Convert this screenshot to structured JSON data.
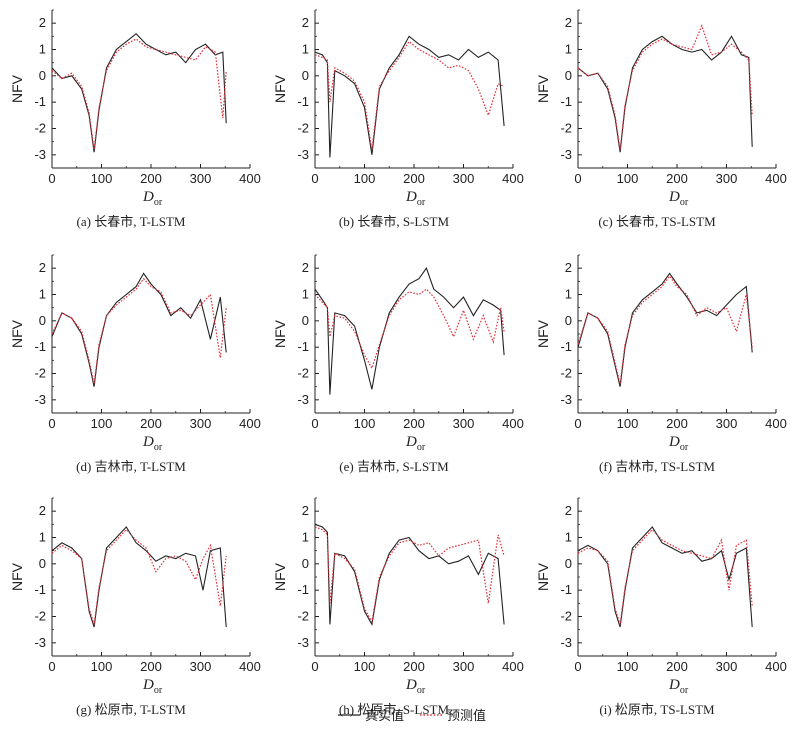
{
  "chart_data": {
    "type": "line",
    "legend": [
      {
        "name": "真实值",
        "color": "#222222",
        "style": "solid"
      },
      {
        "name": "预测值",
        "color": "#e0303a",
        "style": "dotted"
      }
    ],
    "legend_placement": "bottom-center",
    "ylabel": "NFV",
    "xlabel_main": "D",
    "xlabel_sub": "or",
    "ylim": [
      -3.5,
      2.5
    ],
    "yticks": [
      -3,
      -2,
      -1,
      0,
      1,
      2
    ],
    "xlim": [
      0,
      400
    ],
    "xticks": [
      0,
      100,
      200,
      300,
      400
    ],
    "panels": [
      {
        "id": "a",
        "caption": "(a) 长春市, T-LSTM",
        "city": "长春市",
        "model": "T-LSTM",
        "series": [
          {
            "name": "真实值",
            "x": [
              0,
              20,
              40,
              60,
              75,
              85,
              95,
              110,
              130,
              150,
              170,
              190,
              210,
              230,
              250,
              270,
              290,
              310,
              330,
              345,
              352
            ],
            "values": [
              0.3,
              -0.1,
              0.0,
              -0.5,
              -1.5,
              -2.9,
              -1.3,
              0.3,
              1.0,
              1.3,
              1.6,
              1.2,
              1.0,
              0.8,
              0.9,
              0.5,
              1.0,
              1.2,
              0.8,
              0.9,
              -1.8
            ]
          },
          {
            "name": "预测值",
            "x": [
              0,
              20,
              40,
              60,
              75,
              85,
              95,
              110,
              130,
              150,
              170,
              190,
              210,
              230,
              250,
              270,
              290,
              310,
              330,
              345,
              352
            ],
            "values": [
              0.2,
              -0.1,
              0.1,
              -0.4,
              -1.4,
              -2.8,
              -1.2,
              0.2,
              0.9,
              1.2,
              1.4,
              1.1,
              1.0,
              0.9,
              0.8,
              0.7,
              0.6,
              1.1,
              0.9,
              -1.6,
              0.2
            ]
          }
        ]
      },
      {
        "id": "b",
        "caption": "(b) 长春市, S-LSTM",
        "city": "长春市",
        "model": "S-LSTM",
        "series": [
          {
            "name": "真实值",
            "x": [
              0,
              15,
              25,
              30,
              40,
              60,
              80,
              100,
              115,
              130,
              150,
              170,
              190,
              210,
              230,
              250,
              270,
              290,
              310,
              330,
              350,
              370,
              382
            ],
            "values": [
              0.9,
              0.8,
              0.5,
              -3.1,
              0.2,
              0.0,
              -0.3,
              -1.2,
              -3.0,
              -0.5,
              0.3,
              0.8,
              1.5,
              1.2,
              1.0,
              0.7,
              0.8,
              0.6,
              1.0,
              0.7,
              0.9,
              0.6,
              -1.9
            ]
          },
          {
            "name": "预测值",
            "x": [
              0,
              15,
              25,
              30,
              40,
              60,
              80,
              100,
              115,
              130,
              150,
              170,
              190,
              210,
              230,
              250,
              270,
              290,
              310,
              330,
              350,
              370,
              382
            ],
            "values": [
              0.8,
              0.7,
              0.6,
              -1.0,
              0.3,
              0.1,
              -0.2,
              -1.0,
              -2.8,
              -0.4,
              0.2,
              0.7,
              1.3,
              1.0,
              0.8,
              0.6,
              0.3,
              0.4,
              0.2,
              -0.5,
              -1.5,
              -0.3,
              -0.4
            ]
          }
        ]
      },
      {
        "id": "c",
        "caption": "(c) 长春市, TS-LSTM",
        "city": "长春市",
        "model": "TS-LSTM",
        "series": [
          {
            "name": "真实值",
            "x": [
              0,
              20,
              40,
              60,
              75,
              85,
              95,
              110,
              130,
              150,
              170,
              190,
              210,
              230,
              250,
              270,
              290,
              310,
              330,
              345,
              352
            ],
            "values": [
              0.3,
              0.0,
              0.1,
              -0.5,
              -1.6,
              -2.9,
              -1.2,
              0.3,
              1.0,
              1.3,
              1.5,
              1.2,
              1.0,
              0.9,
              1.0,
              0.6,
              0.9,
              1.5,
              0.8,
              0.7,
              -2.7
            ]
          },
          {
            "name": "预测值",
            "x": [
              0,
              20,
              40,
              60,
              75,
              85,
              95,
              110,
              130,
              150,
              170,
              190,
              210,
              230,
              250,
              270,
              290,
              310,
              330,
              345,
              352
            ],
            "values": [
              0.3,
              0.0,
              0.1,
              -0.4,
              -1.5,
              -2.8,
              -1.1,
              0.2,
              0.9,
              1.2,
              1.4,
              1.2,
              1.1,
              1.0,
              1.9,
              0.8,
              0.9,
              1.2,
              0.9,
              0.6,
              -1.5
            ]
          }
        ]
      },
      {
        "id": "d",
        "caption": "(d) 吉林市, T-LSTM",
        "city": "吉林市",
        "model": "T-LSTM",
        "series": [
          {
            "name": "真实值",
            "x": [
              0,
              20,
              40,
              60,
              75,
              85,
              95,
              110,
              130,
              150,
              170,
              185,
              200,
              220,
              240,
              260,
              280,
              300,
              320,
              340,
              352
            ],
            "values": [
              -0.6,
              0.3,
              0.1,
              -0.5,
              -1.6,
              -2.5,
              -1.0,
              0.2,
              0.7,
              1.0,
              1.3,
              1.8,
              1.4,
              1.0,
              0.2,
              0.5,
              0.1,
              0.8,
              -0.7,
              0.9,
              -1.2
            ]
          },
          {
            "name": "预测值",
            "x": [
              0,
              20,
              40,
              60,
              75,
              85,
              95,
              110,
              130,
              150,
              170,
              185,
              200,
              220,
              240,
              260,
              280,
              300,
              320,
              340,
              352
            ],
            "values": [
              -0.5,
              0.3,
              0.1,
              -0.4,
              -1.5,
              -2.4,
              -0.9,
              0.2,
              0.6,
              0.9,
              1.2,
              1.6,
              1.3,
              1.1,
              0.3,
              0.4,
              0.2,
              0.6,
              1.0,
              -1.4,
              0.5
            ]
          }
        ]
      },
      {
        "id": "e",
        "caption": "(e) 吉林市, S-LSTM",
        "city": "吉林市",
        "model": "S-LSTM",
        "series": [
          {
            "name": "真实值",
            "x": [
              0,
              15,
              25,
              30,
              40,
              60,
              80,
              100,
              115,
              130,
              150,
              170,
              190,
              210,
              225,
              240,
              260,
              280,
              300,
              320,
              340,
              360,
              375,
              382
            ],
            "values": [
              1.2,
              0.8,
              0.5,
              -2.8,
              0.3,
              0.2,
              -0.2,
              -1.5,
              -2.6,
              -1.0,
              0.3,
              0.9,
              1.4,
              1.6,
              2.0,
              1.2,
              0.9,
              0.5,
              0.9,
              0.2,
              0.8,
              0.6,
              0.4,
              -1.3
            ]
          },
          {
            "name": "预测值",
            "x": [
              0,
              15,
              25,
              30,
              40,
              60,
              80,
              100,
              115,
              130,
              150,
              170,
              190,
              210,
              225,
              240,
              260,
              280,
              300,
              320,
              340,
              360,
              375,
              382
            ],
            "values": [
              1.0,
              0.7,
              0.5,
              -0.6,
              0.2,
              0.1,
              -0.4,
              -1.3,
              -1.8,
              -0.9,
              0.2,
              0.8,
              1.1,
              1.0,
              1.2,
              0.9,
              0.2,
              -0.6,
              0.4,
              -0.7,
              0.2,
              -0.8,
              0.5,
              -0.4
            ]
          }
        ]
      },
      {
        "id": "f",
        "caption": "(f) 吉林市, TS-LSTM",
        "city": "吉林市",
        "model": "TS-LSTM",
        "series": [
          {
            "name": "真实值",
            "x": [
              0,
              20,
              40,
              60,
              75,
              85,
              95,
              110,
              130,
              150,
              170,
              185,
              200,
              220,
              240,
              260,
              280,
              300,
              320,
              340,
              352
            ],
            "values": [
              -1.0,
              0.3,
              0.1,
              -0.5,
              -1.7,
              -2.5,
              -1.0,
              0.3,
              0.8,
              1.1,
              1.4,
              1.8,
              1.4,
              0.9,
              0.3,
              0.4,
              0.2,
              0.6,
              1.0,
              1.3,
              -1.2
            ]
          },
          {
            "name": "预测值",
            "x": [
              0,
              20,
              40,
              60,
              75,
              85,
              95,
              110,
              130,
              150,
              170,
              185,
              200,
              220,
              240,
              260,
              280,
              300,
              320,
              340,
              352
            ],
            "values": [
              -0.9,
              0.3,
              0.1,
              -0.4,
              -1.6,
              -2.4,
              -0.9,
              0.2,
              0.7,
              1.0,
              1.3,
              1.7,
              1.3,
              1.0,
              0.2,
              0.5,
              0.3,
              0.5,
              -0.4,
              1.0,
              -1.0
            ]
          }
        ]
      },
      {
        "id": "g",
        "caption": "(g) 松原市, T-LSTM",
        "city": "松原市",
        "model": "T-LSTM",
        "series": [
          {
            "name": "真实值",
            "x": [
              0,
              20,
              40,
              60,
              75,
              85,
              95,
              110,
              130,
              150,
              170,
              190,
              210,
              230,
              250,
              270,
              290,
              305,
              320,
              340,
              352
            ],
            "values": [
              0.5,
              0.8,
              0.6,
              0.2,
              -1.8,
              -2.4,
              -1.0,
              0.6,
              1.0,
              1.4,
              0.8,
              0.5,
              0.1,
              0.3,
              0.2,
              0.4,
              0.3,
              -1.0,
              0.5,
              0.6,
              -2.4
            ]
          },
          {
            "name": "预测值",
            "x": [
              0,
              20,
              40,
              60,
              75,
              85,
              95,
              110,
              130,
              150,
              170,
              190,
              210,
              230,
              250,
              270,
              290,
              305,
              320,
              340,
              352
            ],
            "values": [
              0.4,
              0.7,
              0.5,
              0.2,
              -1.7,
              -2.3,
              -0.9,
              0.5,
              0.9,
              1.3,
              0.9,
              0.6,
              -0.3,
              0.2,
              0.3,
              0.1,
              -0.6,
              0.2,
              0.7,
              -1.6,
              0.3
            ]
          }
        ]
      },
      {
        "id": "h",
        "caption": "(h) 松原市, S-LSTM",
        "city": "松原市",
        "model": "S-LSTM",
        "series": [
          {
            "name": "真实值",
            "x": [
              0,
              15,
              25,
              30,
              40,
              60,
              80,
              100,
              115,
              130,
              150,
              170,
              190,
              210,
              230,
              250,
              270,
              290,
              310,
              330,
              350,
              370,
              382
            ],
            "values": [
              1.5,
              1.4,
              1.2,
              -2.3,
              0.4,
              0.3,
              -0.3,
              -1.8,
              -2.3,
              -0.6,
              0.4,
              0.9,
              1.0,
              0.5,
              0.2,
              0.3,
              0.0,
              0.1,
              0.3,
              -0.4,
              0.4,
              0.2,
              -2.3
            ]
          },
          {
            "name": "预测值",
            "x": [
              0,
              15,
              25,
              30,
              40,
              60,
              80,
              100,
              115,
              130,
              150,
              170,
              190,
              210,
              230,
              250,
              270,
              290,
              310,
              330,
              350,
              370,
              382
            ],
            "values": [
              1.4,
              1.3,
              1.1,
              -1.5,
              0.4,
              0.2,
              -0.2,
              -1.7,
              -2.2,
              -0.5,
              0.3,
              0.8,
              0.9,
              0.7,
              0.8,
              0.3,
              0.6,
              0.7,
              0.8,
              0.9,
              -1.5,
              1.1,
              0.3
            ]
          }
        ]
      },
      {
        "id": "i",
        "caption": "(i) 松原市, TS-LSTM",
        "city": "松原市",
        "model": "TS-LSTM",
        "series": [
          {
            "name": "真实值",
            "x": [
              0,
              20,
              40,
              60,
              75,
              85,
              95,
              110,
              130,
              150,
              170,
              190,
              210,
              230,
              250,
              270,
              290,
              305,
              320,
              340,
              352
            ],
            "values": [
              0.5,
              0.7,
              0.5,
              0.0,
              -1.8,
              -2.4,
              -1.0,
              0.6,
              1.0,
              1.4,
              0.8,
              0.6,
              0.4,
              0.5,
              0.1,
              0.2,
              0.5,
              -0.6,
              0.4,
              0.6,
              -2.4
            ]
          },
          {
            "name": "预测值",
            "x": [
              0,
              20,
              40,
              60,
              75,
              85,
              95,
              110,
              130,
              150,
              170,
              190,
              210,
              230,
              250,
              270,
              290,
              305,
              320,
              340,
              352
            ],
            "values": [
              0.4,
              0.6,
              0.5,
              0.1,
              -1.7,
              -2.3,
              -0.9,
              0.5,
              0.9,
              1.3,
              0.9,
              0.7,
              0.5,
              0.4,
              0.3,
              0.2,
              0.9,
              -1.0,
              0.7,
              0.9,
              -1.6
            ]
          }
        ]
      }
    ]
  }
}
